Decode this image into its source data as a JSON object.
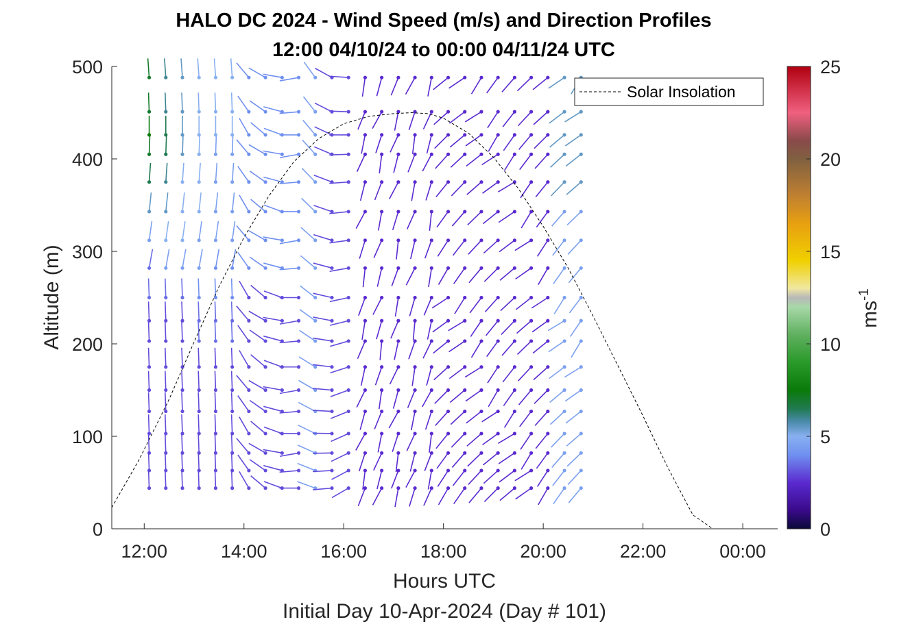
{
  "chart_data": {
    "type": "quiver",
    "title": "HALO DC 2024 - Wind Speed (m/s) and Direction Profiles",
    "subtitle": "12:00 04/10/24 to 00:00 04/11/24  UTC",
    "xlabel": "Hours UTC",
    "xlabel_secondary": "Initial Day 10-Apr-2024 (Day # 101)",
    "ylabel": "Altitude (m)",
    "colorbar_label": "ms",
    "colorbar_label_exponent": "-1",
    "xlim_hours": [
      11.35,
      24.7
    ],
    "ylim": [
      0,
      500
    ],
    "x_ticks": [
      {
        "value": 12,
        "label": "12:00"
      },
      {
        "value": 14,
        "label": "14:00"
      },
      {
        "value": 16,
        "label": "16:00"
      },
      {
        "value": 18,
        "label": "18:00"
      },
      {
        "value": 20,
        "label": "20:00"
      },
      {
        "value": 22,
        "label": "22:00"
      },
      {
        "value": 24,
        "label": "00:00"
      }
    ],
    "y_ticks": [
      {
        "value": 0,
        "label": "0"
      },
      {
        "value": 100,
        "label": "100"
      },
      {
        "value": 200,
        "label": "200"
      },
      {
        "value": 300,
        "label": "300"
      },
      {
        "value": 400,
        "label": "400"
      },
      {
        "value": 500,
        "label": "500"
      }
    ],
    "colorbar": {
      "min": 0,
      "max": 25,
      "ticks": [
        {
          "value": 0,
          "label": "0"
        },
        {
          "value": 5,
          "label": "5"
        },
        {
          "value": 10,
          "label": "10"
        },
        {
          "value": 15,
          "label": "15"
        },
        {
          "value": 20,
          "label": "20"
        },
        {
          "value": 25,
          "label": "25"
        }
      ],
      "stops": [
        [
          0,
          "#0a0a3a"
        ],
        [
          1,
          "#3a0a8a"
        ],
        [
          2.5,
          "#5a2ad0"
        ],
        [
          4,
          "#7090f0"
        ],
        [
          5,
          "#88b0f0"
        ],
        [
          5.8,
          "#4a8aaa"
        ],
        [
          6.5,
          "#207a50"
        ],
        [
          7.5,
          "#0a7a0a"
        ],
        [
          9,
          "#2a9a2a"
        ],
        [
          10.5,
          "#60b060"
        ],
        [
          12,
          "#a8d8a8"
        ],
        [
          12.5,
          "#b8b8b8"
        ],
        [
          13,
          "#f0e8a0"
        ],
        [
          14.5,
          "#f0d000"
        ],
        [
          16.5,
          "#e8a010"
        ],
        [
          18,
          "#c08030"
        ],
        [
          20,
          "#806040"
        ],
        [
          21,
          "#8a4a4a"
        ],
        [
          22.5,
          "#f06080"
        ],
        [
          25,
          "#b00010"
        ]
      ]
    },
    "legend": {
      "label": "Solar Insolation",
      "location": "top-right",
      "line_style": "dashed",
      "color": "#000000"
    },
    "solar_insolation": {
      "x_hours": [
        11.35,
        11.9,
        12.5,
        13,
        13.5,
        14,
        14.5,
        15,
        15.5,
        16,
        16.5,
        17,
        17.35,
        17.7,
        18,
        18.5,
        19,
        19.5,
        20,
        20.5,
        21,
        21.5,
        22,
        22.5,
        23,
        23.4,
        24.7
      ],
      "y": [
        23,
        75,
        140,
        202,
        262,
        315,
        360,
        397,
        422,
        438,
        446,
        449,
        450,
        449,
        444,
        428,
        402,
        368,
        327,
        282,
        230,
        176,
        122,
        66,
        15,
        0,
        0
      ]
    },
    "quiver": {
      "x_start_hours": 12.1,
      "x_step_hours": 0.333,
      "columns": 27,
      "altitudes": [
        44,
        63,
        82,
        103,
        127,
        150,
        175,
        203,
        225,
        250,
        282,
        312,
        343,
        375,
        405,
        426,
        451,
        488
      ],
      "speed_pattern": [
        [
          3,
          3,
          3,
          3,
          3,
          3,
          3,
          3,
          3,
          3.5,
          3.5,
          4.5,
          5.5,
          6.5,
          7,
          7.5,
          7,
          7
        ],
        [
          3,
          3,
          3,
          3,
          3,
          3,
          3,
          3,
          3,
          3.5,
          4.5,
          5,
          5.5,
          6,
          6.5,
          6.5,
          6,
          6
        ],
        [
          3,
          3,
          3,
          3,
          3,
          3,
          3,
          3,
          3,
          3.5,
          4.5,
          5,
          5,
          5,
          5.5,
          5.5,
          5.5,
          5.5
        ],
        [
          3,
          3,
          3,
          3,
          3,
          3,
          3,
          3.5,
          3.5,
          4,
          4.5,
          4.5,
          5,
          5,
          5,
          5,
          5,
          5
        ],
        [
          3,
          3,
          3,
          3,
          3,
          3,
          3,
          3.5,
          3.5,
          4,
          4,
          4.5,
          4.5,
          4.5,
          4.5,
          5,
          5,
          5
        ]
      ]
    }
  }
}
